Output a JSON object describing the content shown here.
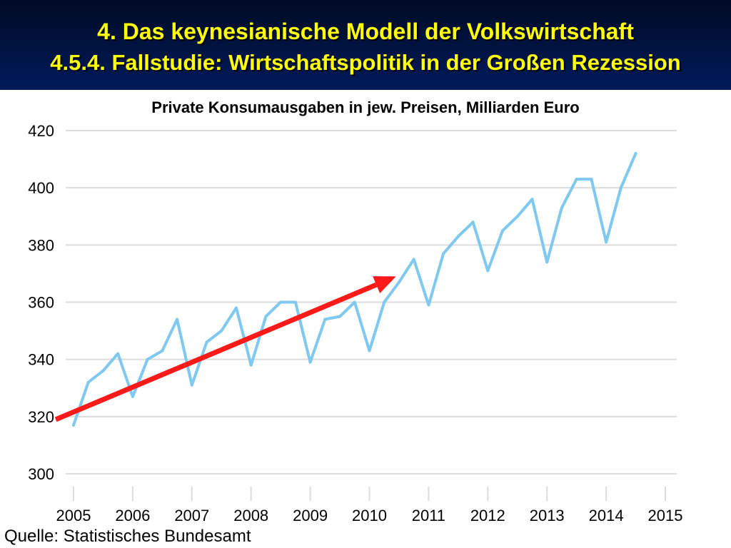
{
  "header": {
    "title": "4. Das keynesianische Modell der Volkswirtschaft",
    "subtitle": "4.5.4.  Fallstudie: Wirtschaftspolitik in der Großen Rezession",
    "text_color": "#ffff00"
  },
  "source": "Quelle: Statistisches Bundesamt",
  "chart_data": {
    "type": "line",
    "title": "Private Konsumausgaben in jew. Preisen, Milliarden Euro",
    "xlabel": "",
    "ylabel": "",
    "xlim": [
      2005,
      2015
    ],
    "ylim": [
      300,
      420
    ],
    "x_ticks": [
      "2005",
      "2006",
      "2007",
      "2008",
      "2009",
      "2010",
      "2011",
      "2012",
      "2013",
      "2014",
      "2015"
    ],
    "y_ticks": [
      "300",
      "320",
      "340",
      "360",
      "380",
      "400",
      "420"
    ],
    "grid": "horizontal",
    "series": [
      {
        "color": "#7fc8f0",
        "x": [
          2005.0,
          2005.25,
          2005.5,
          2005.75,
          2006.0,
          2006.25,
          2006.5,
          2006.75,
          2007.0,
          2007.25,
          2007.5,
          2007.75,
          2008.0,
          2008.25,
          2008.5,
          2008.75,
          2009.0,
          2009.25,
          2009.5,
          2009.75,
          2010.0,
          2010.25,
          2010.5,
          2010.75,
          2011.0,
          2011.25,
          2011.5,
          2011.75,
          2012.0,
          2012.25,
          2012.5,
          2012.75,
          2013.0,
          2013.25,
          2013.5,
          2013.75,
          2014.0,
          2014.25,
          2014.5
        ],
        "y": [
          317,
          332,
          336,
          342,
          327,
          340,
          343,
          354,
          331,
          346,
          350,
          358,
          338,
          355,
          360,
          360,
          339,
          354,
          355,
          360,
          343,
          360,
          367,
          375,
          359,
          377,
          383,
          388,
          371,
          385,
          390,
          396,
          374,
          393,
          403,
          403,
          381,
          400,
          412
        ]
      }
    ],
    "annotations": [
      {
        "type": "arrow",
        "color": "#ff1a1a",
        "from": [
          2004.7,
          319
        ],
        "to": [
          2010.45,
          369
        ]
      }
    ]
  }
}
